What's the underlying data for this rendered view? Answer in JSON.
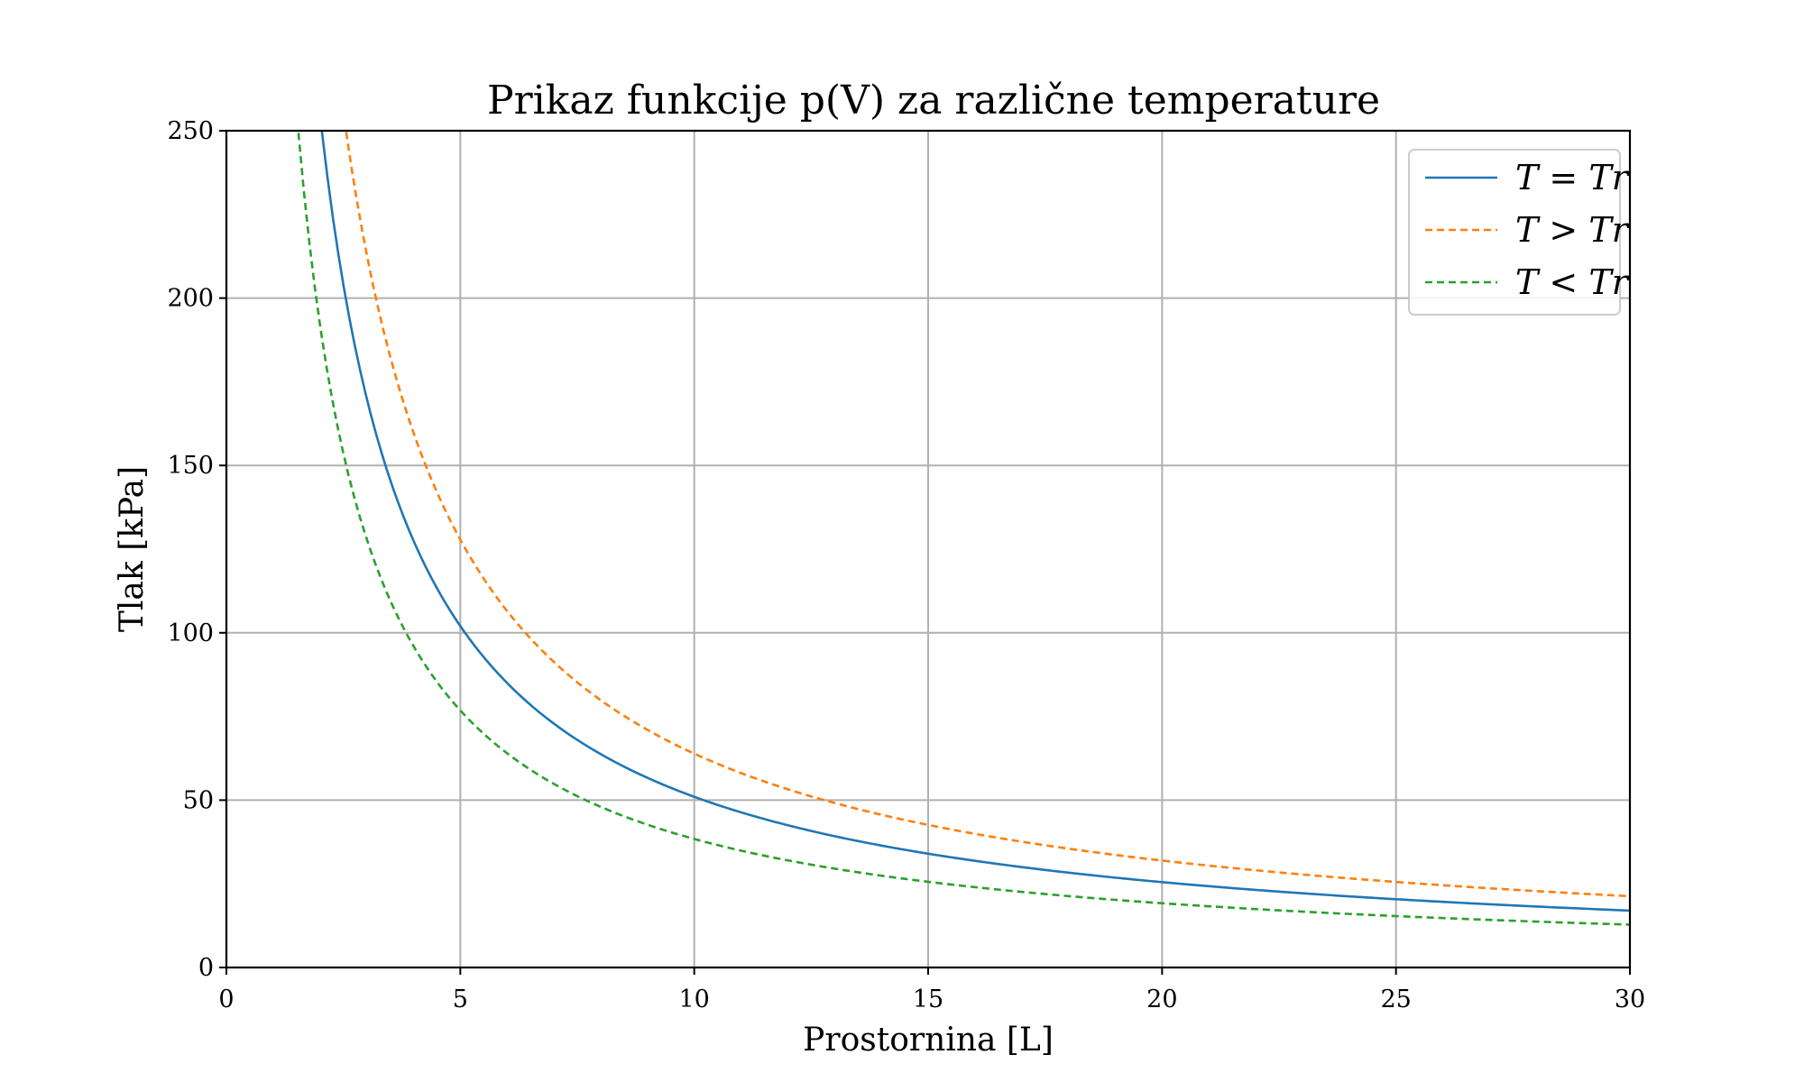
{
  "chart_data": {
    "type": "line",
    "title": "Prikaz funkcije p(V) za različne temperature",
    "xlabel": "Prostornina [L]",
    "ylabel": "Tlak [kPa]",
    "xlim": [
      0,
      30
    ],
    "ylim": [
      0,
      250
    ],
    "xticks": [
      0,
      5,
      10,
      15,
      20,
      25,
      30
    ],
    "yticks": [
      0,
      50,
      100,
      150,
      200,
      250
    ],
    "grid": true,
    "legend_position": "top-right",
    "series": [
      {
        "name": "T = Tr",
        "color": "#1f77b4",
        "dash": "solid",
        "x": [
          2.04,
          2.5,
          3,
          3.5,
          4,
          5,
          6,
          7,
          8,
          10,
          12,
          15,
          20,
          25,
          30
        ],
        "y": [
          250,
          204,
          170,
          146,
          127.5,
          102,
          85,
          73,
          64,
          51,
          42.5,
          34,
          25.5,
          20.4,
          17
        ]
      },
      {
        "name": "T > Tr",
        "color": "#ff7f0e",
        "dash": "dashed",
        "x": [
          2.56,
          3,
          3.5,
          4,
          5,
          6,
          7,
          8,
          10,
          12,
          15,
          20,
          25,
          30
        ],
        "y": [
          250,
          213,
          183,
          160,
          128,
          107,
          91,
          80,
          64,
          53,
          42.5,
          32,
          25.5,
          21.3
        ]
      },
      {
        "name": "T < Tr",
        "color": "#2ca02c",
        "dash": "dashed",
        "x": [
          1.54,
          2,
          2.5,
          3,
          3.5,
          4,
          5,
          6,
          7,
          8,
          10,
          12,
          15,
          20,
          25,
          30
        ],
        "y": [
          250,
          192,
          154,
          128,
          110,
          96,
          77,
          64,
          55,
          48,
          38.5,
          32,
          25.6,
          19.2,
          15.4,
          12.8
        ]
      }
    ]
  }
}
